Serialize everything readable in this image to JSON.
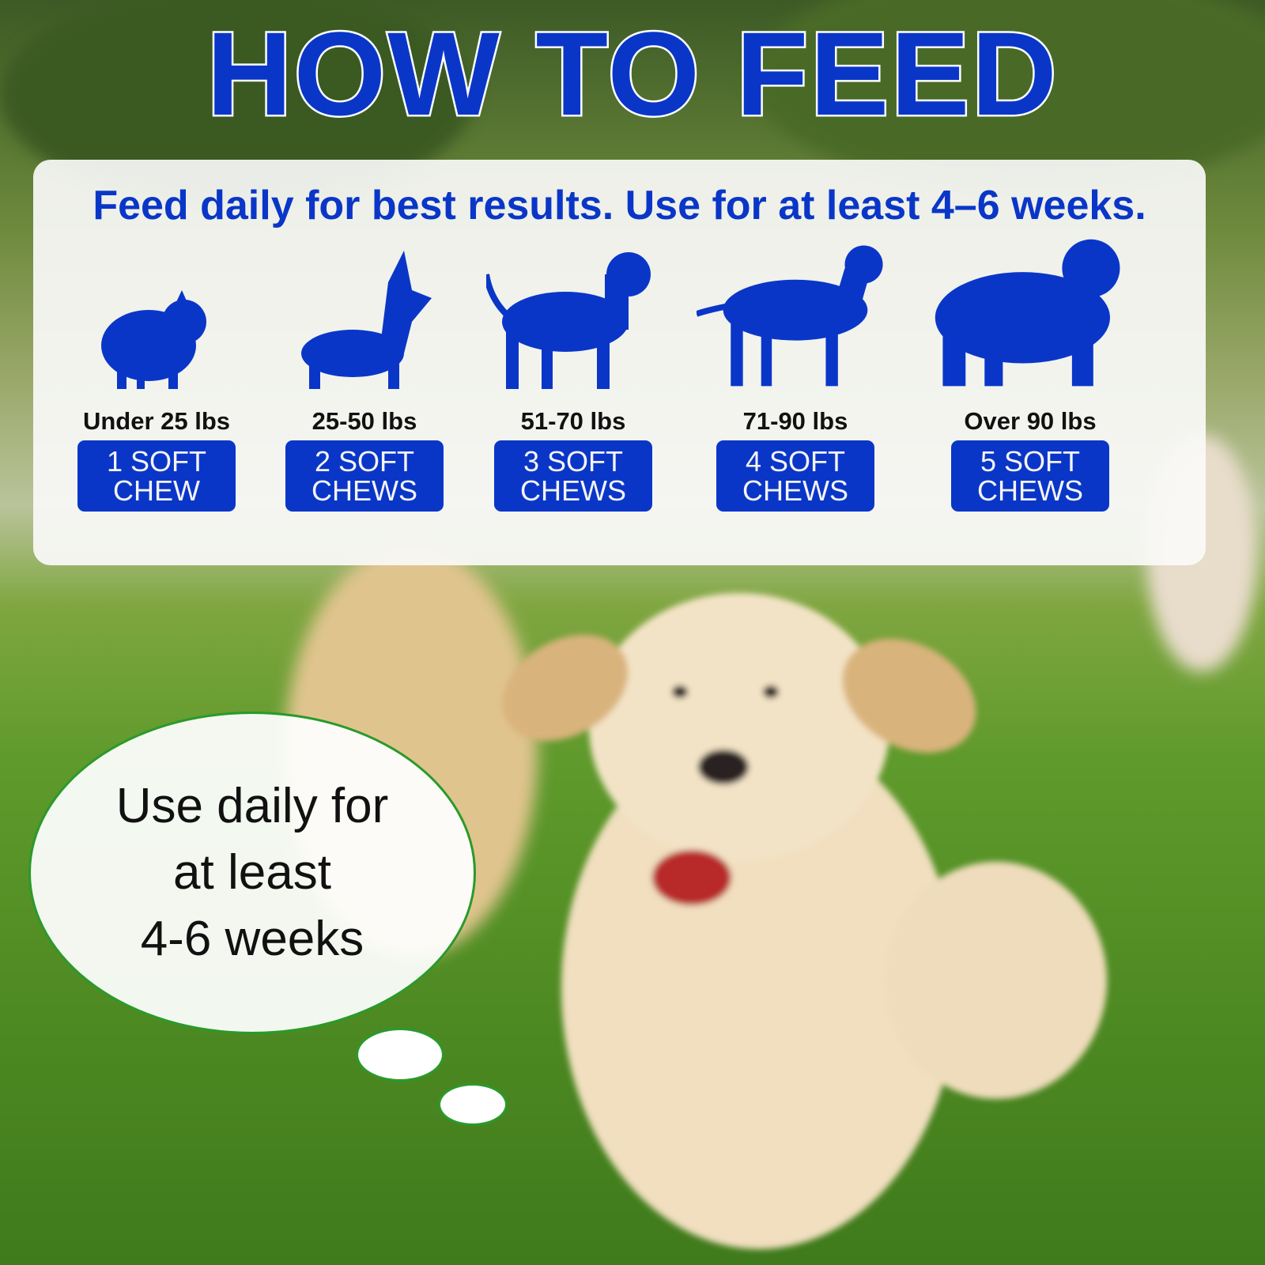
{
  "title": "HOW TO FEED",
  "subtitle": "Feed daily for best results. Use for at least 4–6 weeks.",
  "accent_color": "#0a36c8",
  "dosage": [
    {
      "icon": "pomeranian-silhouette-icon",
      "weight": "Under 25 lbs",
      "line1": "1 SOFT",
      "line2": "CHEW"
    },
    {
      "icon": "corgi-silhouette-icon",
      "weight": "25-50 lbs",
      "line1": "2 SOFT",
      "line2": "CHEWS"
    },
    {
      "icon": "spaniel-silhouette-icon",
      "weight": "51-70 lbs",
      "line1": "3 SOFT",
      "line2": "CHEWS"
    },
    {
      "icon": "labrador-silhouette-icon",
      "weight": "71-90 lbs",
      "line1": "4 SOFT",
      "line2": "CHEWS"
    },
    {
      "icon": "sheepdog-silhouette-icon",
      "weight": "Over 90 lbs",
      "line1": "5 SOFT",
      "line2": "CHEWS"
    }
  ],
  "bubble": {
    "line1": "Use daily for",
    "line2": "at least",
    "line3": "4-6 weeks"
  }
}
